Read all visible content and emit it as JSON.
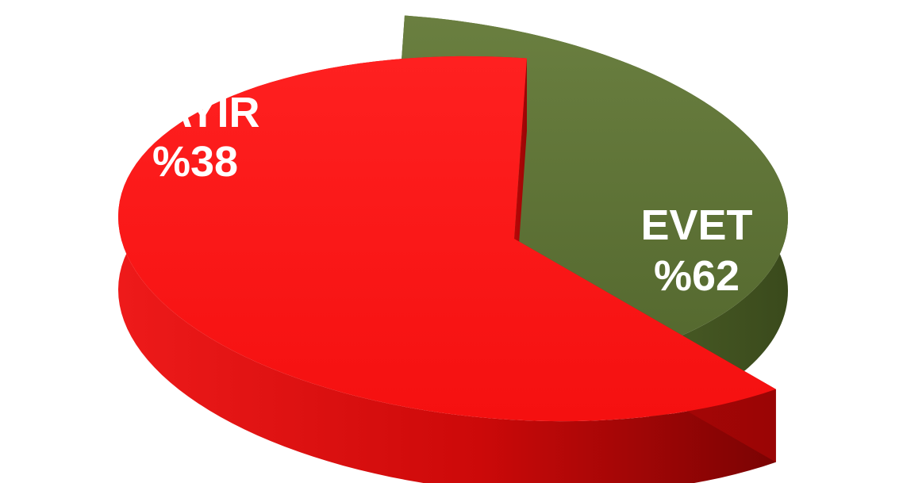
{
  "chart_data": {
    "type": "pie",
    "style": "3d-exploded",
    "title": "",
    "legend": "none",
    "slices": [
      {
        "label": "HAYIR",
        "value": 38,
        "value_text": "%38",
        "color": "#5f7337"
      },
      {
        "label": "EVET",
        "value": 62,
        "value_text": "%62",
        "color": "#ff1a1a"
      }
    ]
  }
}
